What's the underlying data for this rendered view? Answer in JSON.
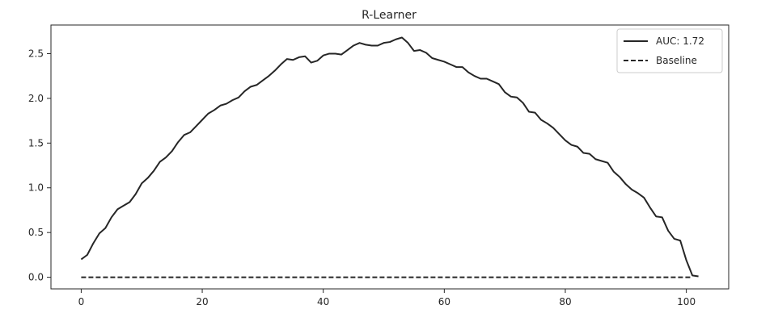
{
  "chart_data": {
    "type": "line",
    "title": "R-Learner",
    "xlabel": "",
    "ylabel": "",
    "xlim": [
      -5,
      107
    ],
    "ylim": [
      -0.13,
      2.82
    ],
    "xticks": [
      0,
      20,
      40,
      60,
      80,
      100
    ],
    "xtick_labels": [
      "0",
      "20",
      "40",
      "60",
      "80",
      "100"
    ],
    "yticks": [
      0.0,
      0.5,
      1.0,
      1.5,
      2.0,
      2.5
    ],
    "ytick_labels": [
      "0.0",
      "0.5",
      "1.0",
      "1.5",
      "2.0",
      "2.5"
    ],
    "grid": false,
    "legend_position": "top-right",
    "series": [
      {
        "name": "AUC: 1.72",
        "style": "solid",
        "color": "#262626",
        "x": [
          0,
          1,
          2,
          3,
          4,
          5,
          6,
          7,
          8,
          9,
          10,
          11,
          12,
          13,
          14,
          15,
          16,
          17,
          18,
          19,
          20,
          21,
          22,
          23,
          24,
          25,
          26,
          27,
          28,
          29,
          30,
          31,
          32,
          33,
          34,
          35,
          36,
          37,
          38,
          39,
          40,
          41,
          42,
          43,
          44,
          45,
          46,
          47,
          48,
          49,
          50,
          51,
          52,
          53,
          54,
          55,
          56,
          57,
          58,
          59,
          60,
          61,
          62,
          63,
          64,
          65,
          66,
          67,
          68,
          69,
          70,
          71,
          72,
          73,
          74,
          75,
          76,
          77,
          78,
          79,
          80,
          81,
          82,
          83,
          84,
          85,
          86,
          87,
          88,
          89,
          90,
          91,
          92,
          93,
          94,
          95,
          96,
          97,
          98,
          99,
          100,
          101,
          102
        ],
        "y": [
          0.2,
          0.25,
          0.38,
          0.49,
          0.55,
          0.67,
          0.76,
          0.8,
          0.84,
          0.93,
          1.05,
          1.11,
          1.19,
          1.29,
          1.34,
          1.41,
          1.51,
          1.59,
          1.62,
          1.69,
          1.76,
          1.83,
          1.87,
          1.92,
          1.94,
          1.98,
          2.01,
          2.08,
          2.13,
          2.15,
          2.2,
          2.25,
          2.31,
          2.38,
          2.44,
          2.43,
          2.46,
          2.47,
          2.4,
          2.42,
          2.48,
          2.5,
          2.5,
          2.49,
          2.54,
          2.59,
          2.62,
          2.6,
          2.59,
          2.59,
          2.62,
          2.63,
          2.66,
          2.68,
          2.62,
          2.53,
          2.54,
          2.51,
          2.45,
          2.43,
          2.41,
          2.38,
          2.35,
          2.35,
          2.29,
          2.25,
          2.22,
          2.22,
          2.19,
          2.16,
          2.07,
          2.02,
          2.01,
          1.95,
          1.85,
          1.84,
          1.76,
          1.72,
          1.67,
          1.6,
          1.53,
          1.48,
          1.46,
          1.39,
          1.38,
          1.32,
          1.3,
          1.28,
          1.18,
          1.12,
          1.04,
          0.98,
          0.94,
          0.89,
          0.78,
          0.68,
          0.67,
          0.52,
          0.43,
          0.41,
          0.19,
          0.02,
          0.01
        ]
      },
      {
        "name": "Baseline",
        "style": "dashed",
        "color": "#262626",
        "x": [
          0,
          101
        ],
        "y": [
          0,
          0
        ]
      }
    ]
  }
}
